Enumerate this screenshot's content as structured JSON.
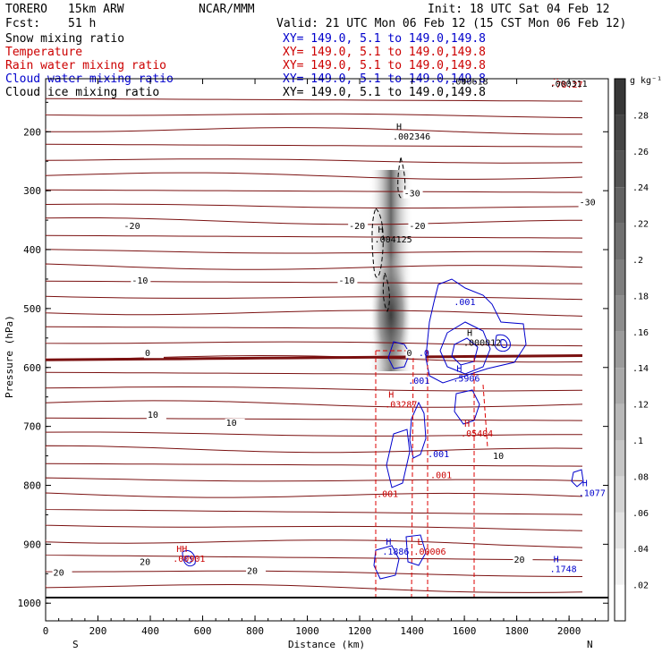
{
  "header": {
    "model": "TORERO",
    "resolution": "15km ARW",
    "center": "NCAR/MMM",
    "init": "Init: 18 UTC Sat 04 Feb 12",
    "fcst_label": "Fcst:",
    "fcst_value": "51 h",
    "valid": "Valid: 21 UTC Mon 06 Feb 12 (15 CST Mon 06 Feb 12)"
  },
  "fields": [
    {
      "name": "Snow mixing ratio",
      "color": "#000000",
      "xy": "XY= 149.0,  5.1 to 149.0,149.8"
    },
    {
      "name": "Temperature",
      "color": "#cc0000",
      "xy": "XY= 149.0,  5.1 to 149.0,149.8"
    },
    {
      "name": "Rain water mixing ratio",
      "color": "#cc0000",
      "xy": "XY= 149.0,  5.1 to 149.0,149.8"
    },
    {
      "name": "Cloud water mixing ratio",
      "color": "#0000cc",
      "xy": "XY= 149.0,  5.1 to 149.0,149.8"
    },
    {
      "name": "Cloud ice mixing ratio",
      "color": "#000000",
      "xy": "XY= 149.0,  5.1 to 149.0,149.8"
    }
  ],
  "colorbar": {
    "unit": "g kg⁻¹",
    "ticks": [
      ".02",
      ".04",
      ".06",
      ".08",
      ".1",
      ".12",
      ".14",
      ".16",
      ".18",
      ".2",
      ".22",
      ".24",
      ".26",
      ".28"
    ]
  },
  "chart_data": {
    "type": "contour",
    "xlabel": "Distance (km)",
    "ylabel": "Pressure (hPa)",
    "xlim": [
      0,
      2150
    ],
    "ylim": [
      1030,
      110
    ],
    "x_ticks": [
      0,
      200,
      400,
      600,
      800,
      1000,
      1200,
      1400,
      1600,
      1800,
      2000
    ],
    "y_ticks": [
      200,
      300,
      400,
      500,
      600,
      700,
      800,
      900,
      1000
    ],
    "x_end_labels": {
      "left": "S",
      "right": "N"
    },
    "temperature_labels": [
      {
        "text": "-78.27",
        "x": 1960,
        "p": 125,
        "color": "#cc0000",
        "marker": "H"
      },
      {
        "text": "-30",
        "x": 1400,
        "p": 310
      },
      {
        "text": "-30",
        "x": 2070,
        "p": 325
      },
      {
        "text": "-20",
        "x": 330,
        "p": 365
      },
      {
        "text": "-20",
        "x": 1190,
        "p": 365
      },
      {
        "text": "-20",
        "x": 1420,
        "p": 365
      },
      {
        "text": "-10",
        "x": 360,
        "p": 458
      },
      {
        "text": "-10",
        "x": 1150,
        "p": 458
      },
      {
        "text": "0",
        "x": 410,
        "p": 581
      },
      {
        "text": "0",
        "x": 1410,
        "p": 581
      },
      {
        "text": "10",
        "x": 420,
        "p": 685
      },
      {
        "text": "10",
        "x": 720,
        "p": 699
      },
      {
        "text": "10",
        "x": 1740,
        "p": 755
      },
      {
        "text": "20",
        "x": 390,
        "p": 935
      },
      {
        "text": "20",
        "x": 800,
        "p": 950
      },
      {
        "text": "20",
        "x": 1820,
        "p": 931
      },
      {
        "text": "20",
        "x": 60,
        "p": 953
      }
    ],
    "extrema_labels": [
      {
        "marker": "H",
        "value": ".002346",
        "x": 1340,
        "p": 213,
        "color": "#000000"
      },
      {
        "marker": "H",
        "value": ".004125",
        "x": 1270,
        "p": 388,
        "color": "#000000"
      },
      {
        "marker": "H",
        "value": ".000618",
        "x": 1560,
        "p": 120,
        "color": "#000000"
      },
      {
        "marker": "H",
        "value": ".000311",
        "x": 1940,
        "p": 124,
        "color": "#000000"
      },
      {
        "marker": "H",
        "value": ".000012",
        "x": 1610,
        "p": 563,
        "color": "#000000"
      },
      {
        "marker": "H",
        "value": ".5906",
        "x": 1570,
        "p": 624,
        "color": "#0000cc"
      },
      {
        "marker": "H",
        "value": ".05404",
        "x": 1600,
        "p": 717,
        "color": "#cc0000"
      },
      {
        "marker": "H",
        "value": ".03287",
        "x": 1310,
        "p": 668,
        "color": "#cc0000"
      },
      {
        "marker": "H",
        "value": ".1077",
        "x": 2050,
        "p": 818,
        "color": "#0000cc"
      },
      {
        "marker": "H",
        "value": ".1886",
        "x": 1300,
        "p": 918,
        "color": "#0000cc"
      },
      {
        "marker": "L",
        "value": ".00006",
        "x": 1420,
        "p": 918,
        "color": "#cc0000"
      },
      {
        "marker": "H",
        "value": ".1748",
        "x": 1940,
        "p": 947,
        "color": "#0000cc"
      },
      {
        "marker": "HH",
        "value": ".00901",
        "x": 500,
        "p": 930,
        "color": "#cc0000"
      }
    ],
    "contour_labels": [
      {
        "text": ".001",
        "x": 1560,
        "p": 494,
        "color": "#0000cc"
      },
      {
        "text": ".001",
        "x": 1385,
        "p": 628,
        "color": "#0000cc"
      },
      {
        "text": ".001",
        "x": 1460,
        "p": 752,
        "color": "#0000cc"
      },
      {
        "text": ".001",
        "x": 1470,
        "p": 788,
        "color": "#cc0000"
      },
      {
        "text": ".001",
        "x": 1265,
        "p": 820,
        "color": "#cc0000"
      },
      {
        "text": ".0",
        "x": 1425,
        "p": 581,
        "color": "#0000cc"
      }
    ]
  }
}
